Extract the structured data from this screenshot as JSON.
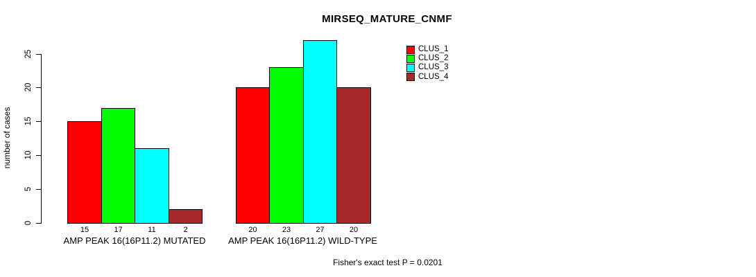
{
  "title": "MIRSEQ_MATURE_CNMF",
  "chart_data": {
    "type": "bar",
    "title": "MIRSEQ_MATURE_CNMF",
    "ylabel": "number of cases",
    "xlabel": "",
    "ylim": [
      0,
      27
    ],
    "yticks": [
      0,
      5,
      10,
      15,
      20,
      25
    ],
    "grid": false,
    "legend_position": "top-right",
    "categories": [
      "AMP PEAK 16(16P11.2) MUTATED",
      "AMP PEAK 16(16P11.2) WILD-TYPE"
    ],
    "series": [
      {
        "name": "CLUS_1",
        "color": "#ff0000",
        "values": [
          15,
          20
        ]
      },
      {
        "name": "CLUS_2",
        "color": "#00ff00",
        "values": [
          17,
          23
        ]
      },
      {
        "name": "CLUS_3",
        "color": "#00ffff",
        "values": [
          11,
          27
        ]
      },
      {
        "name": "CLUS_4",
        "color": "#a52a2a",
        "values": [
          2,
          20
        ]
      }
    ],
    "bar_value_labels": [
      [
        "15",
        "17",
        "11",
        "2"
      ],
      [
        "20",
        "23",
        "27",
        "20"
      ]
    ],
    "annotation": "Fisher's exact test P = 0.0201"
  },
  "colors": {
    "background": "#ffffff",
    "axis": "#000000",
    "text": "#000000"
  }
}
